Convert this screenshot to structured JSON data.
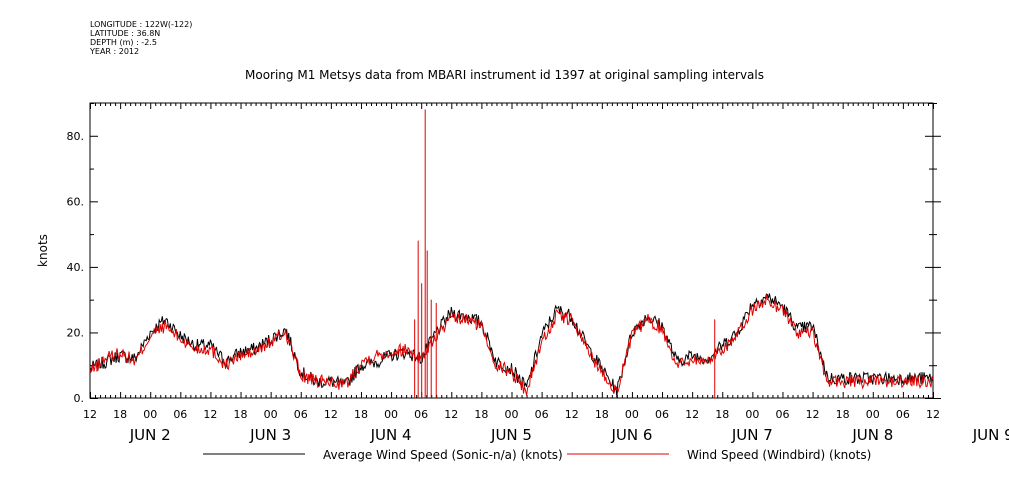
{
  "meta": {
    "longitude": "LONGITUDE : 122W(-122)",
    "latitude": "LATITUDE : 36.8N",
    "depth": "DEPTH (m) : -2.5",
    "year": "YEAR : 2012"
  },
  "chart_data": {
    "type": "line",
    "title": "Mooring M1 Metsys data from MBARI instrument id 1397 at original sampling intervals",
    "ylabel": "knots",
    "xlabel": "",
    "ylim": [
      0,
      90
    ],
    "xlim_hours": [
      0,
      168
    ],
    "y_ticks": [
      0,
      20,
      40,
      60,
      80
    ],
    "y_tick_labels": [
      "0.",
      "20.",
      "40.",
      "60.",
      "80."
    ],
    "x_hour_labels": [
      "12",
      "18",
      "00",
      "06",
      "12",
      "18",
      "00",
      "06",
      "12",
      "18",
      "00",
      "06",
      "12",
      "18",
      "00",
      "06",
      "12",
      "18",
      "00",
      "06",
      "12",
      "18",
      "00",
      "06",
      "12",
      "18",
      "00",
      "06",
      "12"
    ],
    "x_day_labels": [
      "JUN  2",
      "JUN  3",
      "JUN  4",
      "JUN  5",
      "JUN  6",
      "JUN  7",
      "JUN  8",
      "JUN  9"
    ],
    "grid": false,
    "legend_placement": "bottom",
    "series": [
      {
        "name": "Average Wind Speed (Sonic-n/a) (knots)",
        "color": "#000000",
        "x": [
          0,
          3,
          6,
          9,
          12,
          15,
          18,
          21,
          24,
          27,
          30,
          33,
          36,
          39,
          42,
          45,
          48,
          51,
          54,
          57,
          60,
          63,
          66,
          69,
          72,
          75,
          78,
          81,
          84,
          87,
          90,
          93,
          96,
          99,
          102,
          105,
          108,
          111,
          114,
          117,
          120,
          123,
          126,
          129,
          132,
          135,
          138,
          141,
          144,
          147,
          150,
          153,
          156,
          159,
          162,
          165,
          168
        ],
        "values": [
          9,
          11,
          13,
          12,
          20,
          24,
          19,
          16,
          16,
          11,
          14,
          15,
          18,
          21,
          8,
          5,
          5,
          4,
          10,
          11,
          13,
          14,
          12,
          20,
          26,
          25,
          23,
          11,
          9,
          3,
          19,
          27,
          25,
          16,
          9,
          2,
          20,
          25,
          22,
          11,
          13,
          12,
          16,
          20,
          29,
          31,
          28,
          21,
          22,
          6,
          6,
          6,
          6,
          6,
          6,
          6,
          6
        ]
      },
      {
        "name": "Wind Speed (Windbird) (knots)",
        "color": "#e00000",
        "x": [
          0,
          3,
          6,
          9,
          12,
          15,
          18,
          21,
          24,
          27,
          30,
          33,
          36,
          39,
          42,
          45,
          48,
          51,
          54,
          57,
          60,
          63,
          66,
          69,
          72,
          75,
          78,
          81,
          84,
          87,
          90,
          93,
          96,
          99,
          102,
          105,
          108,
          111,
          114,
          117,
          120,
          123,
          126,
          129,
          132,
          135,
          138,
          141,
          144,
          147,
          150,
          153,
          156,
          159,
          162,
          165,
          168
        ],
        "values": [
          8,
          12,
          14,
          11,
          19,
          22,
          18,
          15,
          15,
          10,
          13,
          14,
          17,
          20,
          7,
          5,
          5,
          4,
          11,
          13,
          14,
          15,
          12,
          19,
          24,
          24,
          22,
          10,
          8,
          2,
          17,
          25,
          24,
          15,
          8,
          2,
          19,
          24,
          21,
          10,
          12,
          11,
          15,
          19,
          27,
          30,
          27,
          20,
          20,
          5,
          5,
          5,
          5,
          5,
          5,
          5,
          5
        ],
        "spikes": [
          {
            "x": 64.7,
            "value": 24
          },
          {
            "x": 65.4,
            "value": 48
          },
          {
            "x": 66.1,
            "value": 35
          },
          {
            "x": 66.8,
            "value": 88
          },
          {
            "x": 67.2,
            "value": 45
          },
          {
            "x": 68.0,
            "value": 30
          },
          {
            "x": 69.0,
            "value": 29
          },
          {
            "x": 124.5,
            "value": 24
          }
        ]
      }
    ]
  }
}
